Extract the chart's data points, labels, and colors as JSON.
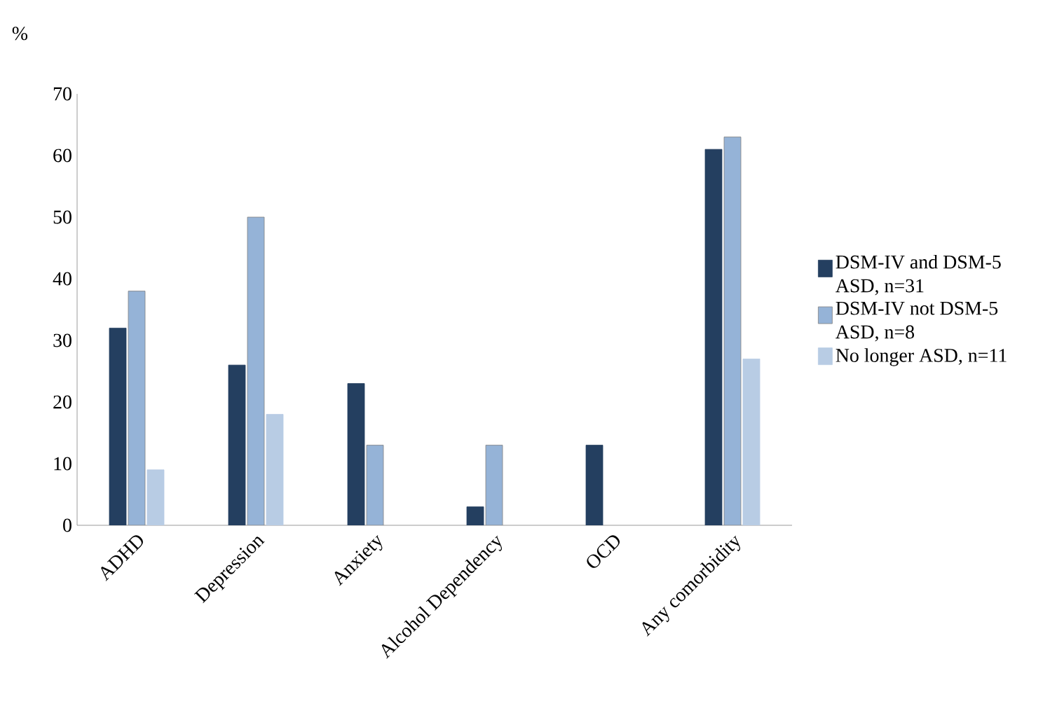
{
  "chart_data": {
    "type": "bar",
    "ylabel": "%",
    "categories": [
      "ADHD",
      "Depression",
      "Anxiety",
      "Alcohol Dependency",
      "OCD",
      "Any comorbidity"
    ],
    "series": [
      {
        "name": "DSM-IV and DSM-5 ASD, n=31",
        "color": "#243f60",
        "values": [
          32,
          26,
          23,
          3,
          13,
          61
        ]
      },
      {
        "name": "DSM-IV not DSM-5 ASD, n=8",
        "color": "#95b3d7",
        "values": [
          38,
          50,
          13,
          13,
          null,
          63
        ]
      },
      {
        "name": "No longer ASD, n=11",
        "color": "#b8cce4",
        "values": [
          9,
          18,
          null,
          null,
          null,
          27
        ]
      }
    ],
    "ylim": [
      0,
      70
    ],
    "yticks": [
      0,
      10,
      20,
      30,
      40,
      50,
      60,
      70
    ],
    "legend": "right"
  }
}
